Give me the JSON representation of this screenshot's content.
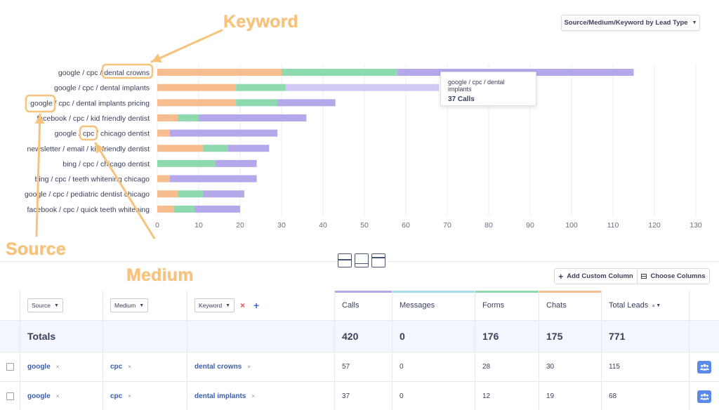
{
  "chart_data": {
    "type": "bar",
    "orientation": "horizontal",
    "stacked": true,
    "categories": [
      "google / cpc / dental crowns",
      "google / cpc / dental implants",
      "google / cpc / dental implants pricing",
      "facebook / cpc / kid friendly dentist",
      "google / cpc / chicago dentist",
      "newsletter / email / kid friendly dentist",
      "bing / cpc / chicago dentist",
      "bing / cpc / teeth whitening chicago",
      "google / cpc / pediatric dentist chicago",
      "facebook / cpc / quick teeth whitening"
    ],
    "series": [
      {
        "key": "chats",
        "color": "#f7bd8e",
        "values": [
          30,
          19,
          19,
          5,
          3,
          11,
          0,
          3,
          5,
          4
        ]
      },
      {
        "key": "forms",
        "color": "#8fd9b0",
        "values": [
          28,
          12,
          10,
          5,
          0,
          6,
          14,
          0,
          6,
          5
        ]
      },
      {
        "key": "calls",
        "color": "#b4a7ea",
        "values": [
          57,
          37,
          14,
          26,
          26,
          10,
          10,
          21,
          10,
          11
        ]
      }
    ],
    "highlight": {
      "category_index": 1,
      "series_key": "calls",
      "color": "#d2c9f6"
    },
    "x_ticks": [
      "0",
      "10",
      "20",
      "30",
      "40",
      "50",
      "60",
      "70",
      "80",
      "90",
      "100",
      "110",
      "120",
      "130"
    ],
    "xlim": [
      0,
      130
    ],
    "grid": true,
    "legend": "none"
  },
  "chart_toolbar": {
    "report_type_label": "Source/Medium/Keyword by Lead Type"
  },
  "tooltip": {
    "line1": "google / cpc / dental implants",
    "line2": "37 Calls"
  },
  "annotations": {
    "keyword": "Keyword",
    "source": "Source",
    "medium": "Medium",
    "color": "#f7c27c"
  },
  "table_toolbar": {
    "add_custom_column": "Add Custom Column",
    "choose_columns": "Choose Columns"
  },
  "table": {
    "filters": {
      "source": "Source",
      "medium": "Medium",
      "keyword": "Keyword",
      "remove_symbol": "×",
      "add_symbol": "+"
    },
    "columns": [
      {
        "label": "Calls",
        "color": "#b4a7ea"
      },
      {
        "label": "Messages",
        "color": "#a8dbe8"
      },
      {
        "label": "Forms",
        "color": "#8fd9b0"
      },
      {
        "label": "Chats",
        "color": "#f7bd8e"
      },
      {
        "label": "Total Leads",
        "color": ""
      }
    ],
    "totals": {
      "label": "Totals",
      "calls": "420",
      "messages": "0",
      "forms": "176",
      "chats": "175",
      "total": "771"
    },
    "rows": [
      {
        "source": "google",
        "medium": "cpc",
        "keyword": "dental crowns",
        "calls": "57",
        "messages": "0",
        "forms": "28",
        "chats": "30",
        "total": "115"
      },
      {
        "source": "google",
        "medium": "cpc",
        "keyword": "dental implants",
        "calls": "37",
        "messages": "0",
        "forms": "12",
        "chats": "19",
        "total": "68"
      }
    ],
    "chip_remove": "×"
  }
}
